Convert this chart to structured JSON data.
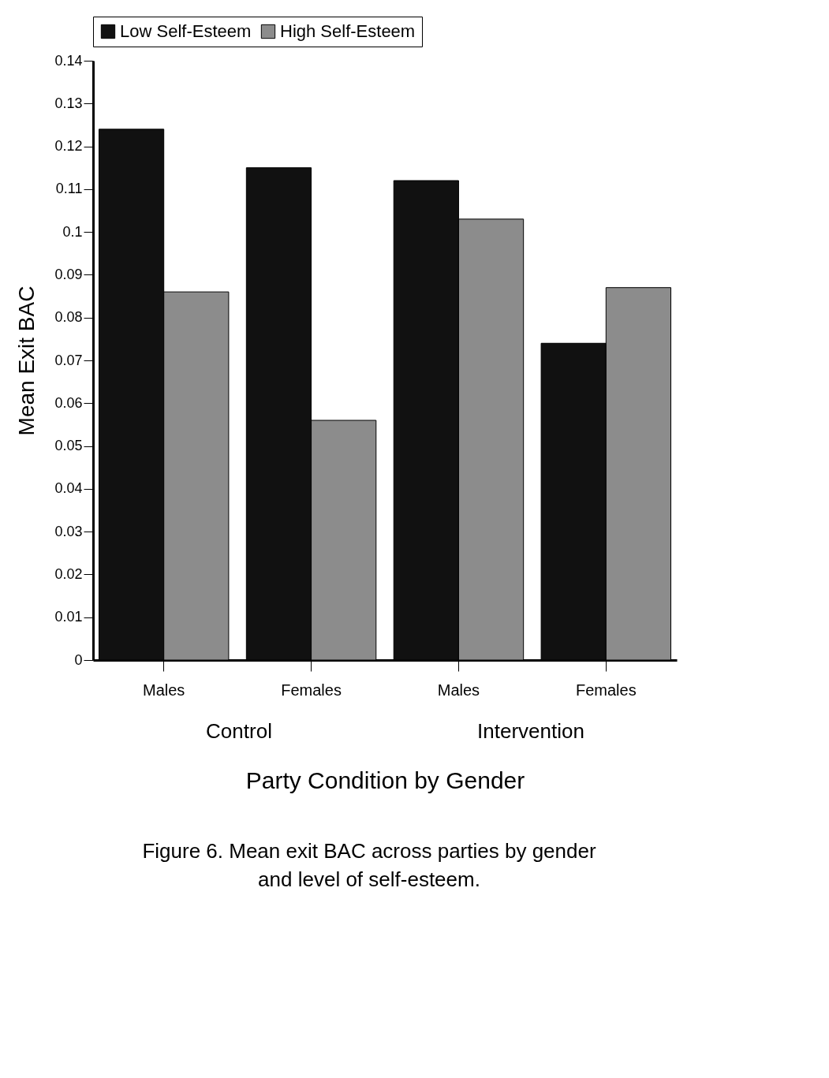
{
  "chart_data": {
    "type": "bar",
    "xlabel": "Party Condition by Gender",
    "ylabel": "Mean Exit BAC",
    "categories": [
      "Males",
      "Females",
      "Males",
      "Females"
    ],
    "series": [
      {
        "name": "Low Self-Esteem",
        "color": "#111111",
        "values": [
          0.124,
          0.115,
          0.112,
          0.074
        ]
      },
      {
        "name": "High Self-Esteem",
        "color": "#8c8c8c",
        "values": [
          0.086,
          0.056,
          0.103,
          0.087
        ]
      }
    ],
    "ylim": [
      0,
      0.14
    ],
    "yticks": [
      0,
      0.01,
      0.02,
      0.03,
      0.04,
      0.05,
      0.06,
      0.07,
      0.08,
      0.09,
      0.1,
      0.11,
      0.12,
      0.13,
      0.14
    ],
    "grid": false,
    "legend": "top",
    "annotations": [
      "Control",
      "Intervention",
      "Figure 6.  Mean exit BAC across parties by gender and level of self-esteem."
    ]
  }
}
